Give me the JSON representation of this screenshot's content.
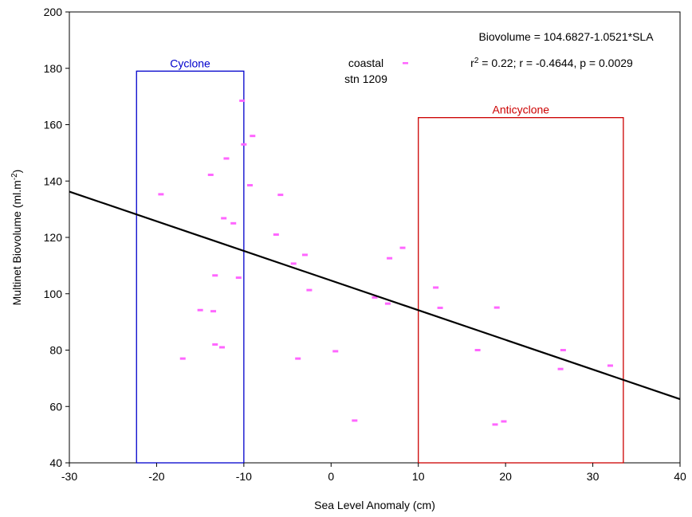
{
  "chart_data": {
    "type": "scatter",
    "xlabel": "Sea Level Anomaly (cm)",
    "ylabel_main": "Multinet Biovolume (ml.m",
    "ylabel_sup": "-2",
    "ylabel_close": ")",
    "xlim": [
      -30,
      40
    ],
    "ylim": [
      40,
      200
    ],
    "xticks": [
      -30,
      -20,
      -10,
      0,
      10,
      20,
      30,
      40
    ],
    "yticks": [
      40,
      60,
      80,
      100,
      120,
      140,
      160,
      180,
      200
    ],
    "grid": false,
    "point_color": "#ff66ff",
    "series": [
      {
        "name": "coastal stn 1209",
        "points": [
          [
            -19.5,
            135.3
          ],
          [
            -17,
            77
          ],
          [
            -15,
            94.2
          ],
          [
            -13.8,
            142.2
          ],
          [
            -13.5,
            93.8
          ],
          [
            -13.3,
            106.5
          ],
          [
            -13.3,
            82
          ],
          [
            -12.5,
            81
          ],
          [
            -12.3,
            126.8
          ],
          [
            -12,
            148
          ],
          [
            -11.2,
            125
          ],
          [
            -10.6,
            105.7
          ],
          [
            -10.2,
            168.5
          ],
          [
            -10,
            153
          ],
          [
            -9.3,
            138.5
          ],
          [
            -9,
            156
          ],
          [
            -6.3,
            121
          ],
          [
            -5.8,
            135.1
          ],
          [
            -4.3,
            110.7
          ],
          [
            -3.8,
            77
          ],
          [
            -3,
            113.8
          ],
          [
            -2.5,
            101.3
          ],
          [
            0.5,
            79.6
          ],
          [
            2.7,
            55
          ],
          [
            5,
            98.7
          ],
          [
            6.5,
            96.5
          ],
          [
            6.7,
            112.6
          ],
          [
            8.2,
            116.3
          ],
          [
            12,
            102.2
          ],
          [
            12.5,
            95
          ],
          [
            16.8,
            80
          ],
          [
            18.8,
            53.6
          ],
          [
            19,
            95.1
          ],
          [
            19.8,
            54.7
          ],
          [
            26.3,
            73.3
          ],
          [
            26.6,
            80
          ],
          [
            32,
            74.5
          ]
        ]
      }
    ],
    "regression": {
      "intercept": 104.6827,
      "slope": -1.0521,
      "color": "#000000",
      "equation": "Biovolume = 104.6827-1.0521*SLA",
      "stats_r": "r",
      "stats_sup": "2",
      "stats_rest": " = 0.22;  r = -0.4644, p = 0.0029"
    },
    "legend": {
      "line1": "coastal",
      "line2": "stn 1209"
    },
    "boxes": [
      {
        "label": "Cyclone",
        "color": "#0000cc",
        "x0": -22.3,
        "x1": -10,
        "y0": 40,
        "y1": 179
      },
      {
        "label": "Anticyclone",
        "color": "#cc0000",
        "x0": 10,
        "x1": 33.5,
        "y0": 40,
        "y1": 162.5
      }
    ]
  }
}
